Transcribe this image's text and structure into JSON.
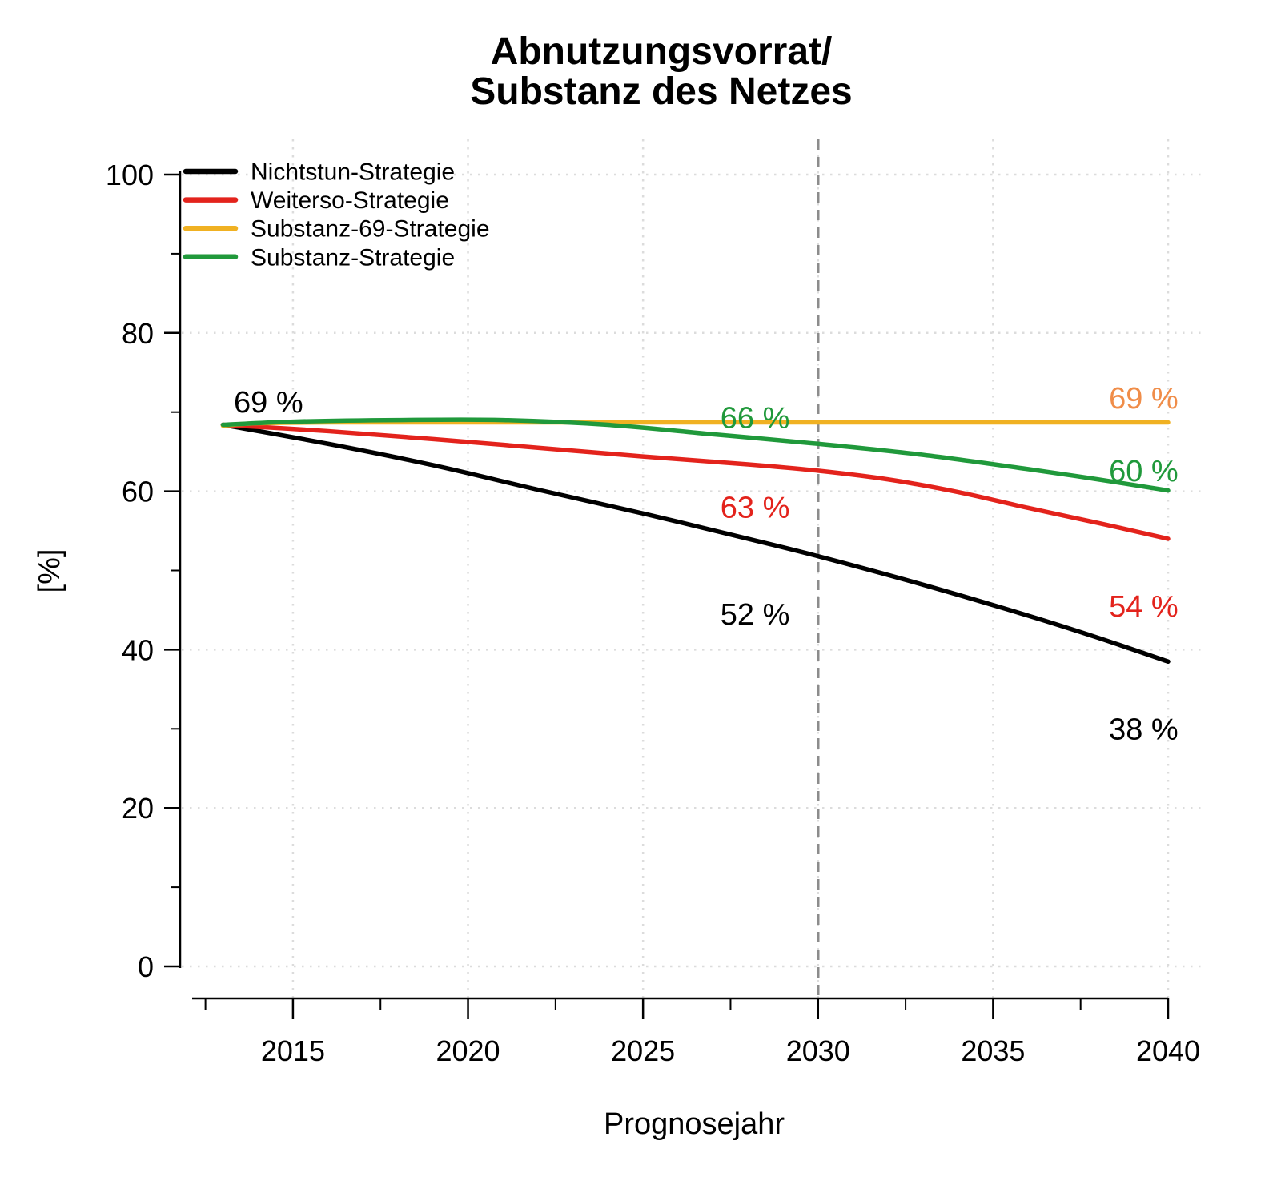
{
  "title": {
    "line1": "Abnutzungsvorrat/",
    "line2": "Substanz des Netzes"
  },
  "colors": {
    "black": "#000000",
    "red": "#e3231c",
    "orange_line": "#f0b122",
    "orange_label": "#f08d49",
    "green": "#20993b",
    "reference_line": "#8c8c8c",
    "grid": "#dcdcdc",
    "axis": "#000000"
  },
  "chart_data": {
    "type": "line",
    "title": "Abnutzungsvorrat/ Substanz des Netzes",
    "xlabel": "Prognosejahr",
    "ylabel": "[%]",
    "xlim": [
      2012.12,
      2040
    ],
    "ylim": [
      0,
      100
    ],
    "grid": "faint dotted gridlines at major ticks, both axes",
    "legend_position": "top-left",
    "x_major_ticks": [
      2015,
      2020,
      2025,
      2030,
      2035,
      2040
    ],
    "x_major_tick_labels": [
      "2015",
      "2020",
      "2025",
      "2030",
      "2035",
      "2040"
    ],
    "x_minor_ticks": [
      2012.5,
      2017.5,
      2022.5,
      2027.5,
      2032.5,
      2037.5
    ],
    "y_major_ticks": [
      0,
      20,
      40,
      60,
      80,
      100
    ],
    "y_major_tick_labels": [
      "0",
      "20",
      "40",
      "60",
      "80",
      "100"
    ],
    "y_minor_ticks": [
      10,
      30,
      50,
      70,
      90
    ],
    "reference_line_x": 2030,
    "series": [
      {
        "name": "Nichtstun-Strategie",
        "color_key": "black",
        "points": [
          [
            2013,
            68.4
          ],
          [
            2016,
            66.0
          ],
          [
            2019,
            63.3
          ],
          [
            2022,
            60.2
          ],
          [
            2025,
            57.2
          ],
          [
            2028,
            54.0
          ],
          [
            2030,
            51.8
          ],
          [
            2033,
            48.2
          ],
          [
            2036,
            44.3
          ],
          [
            2038,
            41.5
          ],
          [
            2040,
            38.5
          ]
        ]
      },
      {
        "name": "Weiterso-Strategie",
        "color_key": "red",
        "points": [
          [
            2013,
            68.4
          ],
          [
            2016,
            67.6
          ],
          [
            2019,
            66.6
          ],
          [
            2022,
            65.5
          ],
          [
            2025,
            64.4
          ],
          [
            2028,
            63.4
          ],
          [
            2030,
            62.6
          ],
          [
            2032,
            61.5
          ],
          [
            2034,
            59.9
          ],
          [
            2036,
            57.9
          ],
          [
            2038,
            56.0
          ],
          [
            2040,
            54.0
          ]
        ]
      },
      {
        "name": "Substanz-69-Strategie",
        "color_key": "orange_line",
        "points": [
          [
            2013,
            68.3
          ],
          [
            2014,
            68.6
          ],
          [
            2016,
            68.7
          ],
          [
            2020,
            68.7
          ],
          [
            2025,
            68.7
          ],
          [
            2030,
            68.7
          ],
          [
            2035,
            68.7
          ],
          [
            2040,
            68.7
          ]
        ]
      },
      {
        "name": "Substanz-Strategie",
        "color_key": "green",
        "points": [
          [
            2013,
            68.4
          ],
          [
            2015,
            68.8
          ],
          [
            2018,
            69.0
          ],
          [
            2021,
            69.0
          ],
          [
            2024,
            68.4
          ],
          [
            2027,
            67.2
          ],
          [
            2030,
            66.0
          ],
          [
            2033,
            64.6
          ],
          [
            2036,
            62.8
          ],
          [
            2038,
            61.5
          ],
          [
            2040,
            60.1
          ]
        ]
      }
    ],
    "annotations": [
      {
        "text": "69 %",
        "color_key": "black",
        "x": 2014.3,
        "y": 71.3
      },
      {
        "text": "66 %",
        "color_key": "green",
        "x": 2028.2,
        "y": 69.3
      },
      {
        "text": "63 %",
        "color_key": "red",
        "x": 2028.2,
        "y": 58.0
      },
      {
        "text": "52 %",
        "color_key": "black",
        "x": 2028.2,
        "y": 44.5
      },
      {
        "text": "69 %",
        "color_key": "orange_label",
        "x": 2039.3,
        "y": 71.8
      },
      {
        "text": "60 %",
        "color_key": "green",
        "x": 2039.3,
        "y": 62.6
      },
      {
        "text": "54 %",
        "color_key": "red",
        "x": 2039.3,
        "y": 45.5
      },
      {
        "text": "38 %",
        "color_key": "black",
        "x": 2039.3,
        "y": 30.0
      }
    ]
  }
}
